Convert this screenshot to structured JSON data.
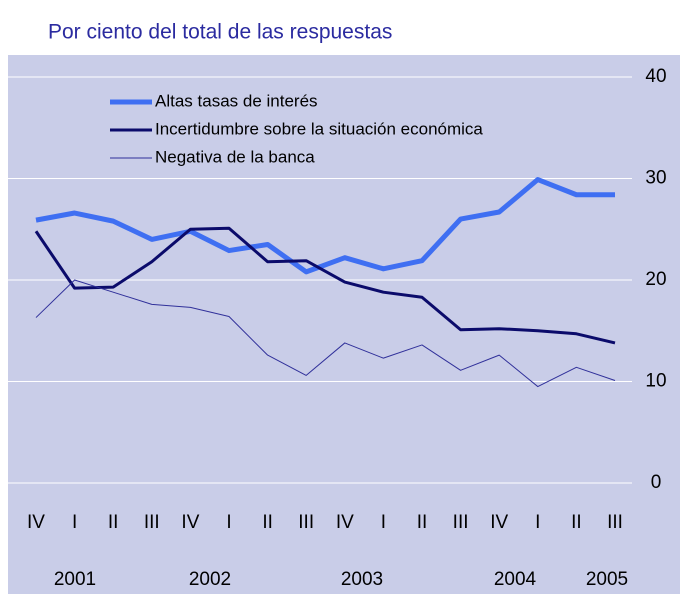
{
  "chart_data": {
    "type": "line",
    "title": "Por ciento del total de las respuestas",
    "categories": [
      "IV",
      "I",
      "II",
      "III",
      "IV",
      "I",
      "II",
      "III",
      "IV",
      "I",
      "II",
      "III",
      "IV",
      "I",
      "II",
      "III"
    ],
    "year_labels": [
      "2001",
      "2002",
      "2003",
      "2004",
      "2005"
    ],
    "series": [
      {
        "name": "Altas tasas de interés",
        "color": "#3f6ff2",
        "values": [
          25.9,
          26.6,
          25.8,
          24.0,
          24.8,
          22.9,
          23.5,
          20.8,
          22.2,
          21.1,
          21.9,
          26.0,
          26.7,
          29.9,
          28.4,
          28.4
        ]
      },
      {
        "name": "Incertidumbre sobre la situación económica",
        "color": "#0b0b6b",
        "values": [
          24.8,
          19.2,
          19.3,
          21.8,
          25.0,
          25.1,
          21.8,
          21.9,
          19.8,
          18.8,
          18.3,
          15.1,
          15.2,
          15.0,
          14.7,
          13.8
        ]
      },
      {
        "name": "Negativa de la banca",
        "color": "#30309a",
        "values": [
          16.3,
          20.0,
          18.8,
          17.6,
          17.3,
          16.4,
          12.6,
          10.6,
          13.8,
          12.3,
          13.6,
          11.1,
          12.6,
          9.5,
          11.4,
          10.1
        ]
      }
    ],
    "ylim": [
      0,
      40
    ],
    "yticks": [
      0,
      10,
      20,
      30,
      40
    ],
    "grid": true,
    "legend": "upper left"
  }
}
